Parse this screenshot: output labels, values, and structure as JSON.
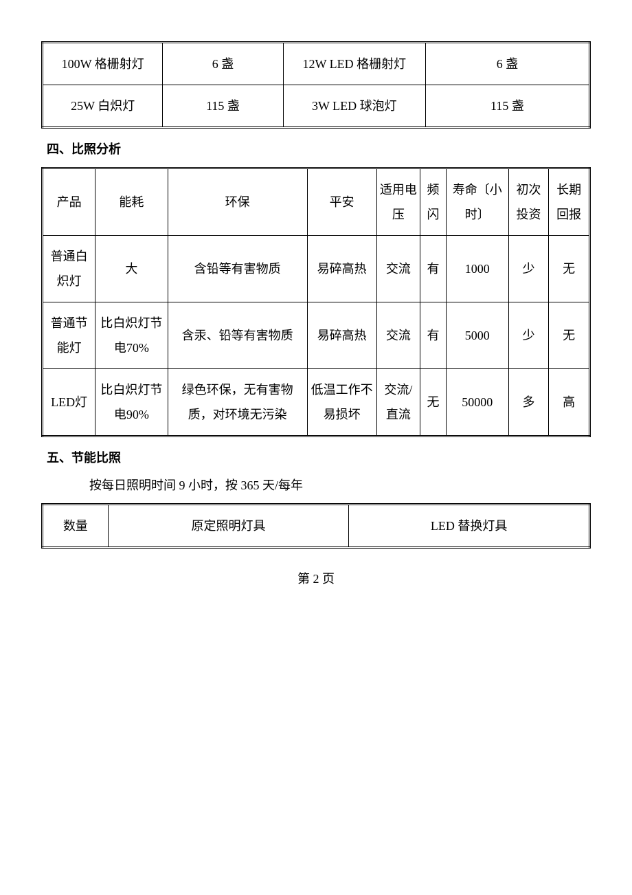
{
  "table1": {
    "rows": [
      {
        "c1": "100W 格栅射灯",
        "c2": "6 盏",
        "c3": "12W LED 格栅射灯",
        "c4": "6 盏"
      },
      {
        "c1": "25W 白炽灯",
        "c2": "115 盏",
        "c3": "3W LED 球泡灯",
        "c4": "115 盏"
      }
    ]
  },
  "section4": {
    "heading": "四、比照分析"
  },
  "table2": {
    "headers": {
      "c1": "产品",
      "c2": "能耗",
      "c3": "环保",
      "c4": "平安",
      "c5": "适用电压",
      "c6": "频闪",
      "c7": "寿命〔小时〕",
      "c8": "初次投资",
      "c9": "长期回报"
    },
    "rows": [
      {
        "c1": "普通白炽灯",
        "c2": "大",
        "c3": "含铅等有害物质",
        "c4": "易碎高热",
        "c5": "交流",
        "c6": "有",
        "c7": "1000",
        "c8": "少",
        "c9": "无"
      },
      {
        "c1": "普通节能灯",
        "c2": "比白炽灯节电70%",
        "c3": "含汞、铅等有害物质",
        "c4": "易碎高热",
        "c5": "交流",
        "c6": "有",
        "c7": "5000",
        "c8": "少",
        "c9": "无"
      },
      {
        "c1": "LED灯",
        "c2": "比白炽灯节电90%",
        "c3": "绿色环保，无有害物质，对环境无污染",
        "c4": "低温工作不易损坏",
        "c5": "交流/直流",
        "c6": "无",
        "c7": "50000",
        "c8": "多",
        "c9": "高"
      }
    ]
  },
  "section5": {
    "heading": "五、节能比照",
    "note": "按每日照明时间 9 小时，按 365 天/每年"
  },
  "table3": {
    "headers": {
      "c1": "数量",
      "c2": "原定照明灯具",
      "c3": "LED 替换灯具"
    }
  },
  "pageNumber": "第 2 页"
}
